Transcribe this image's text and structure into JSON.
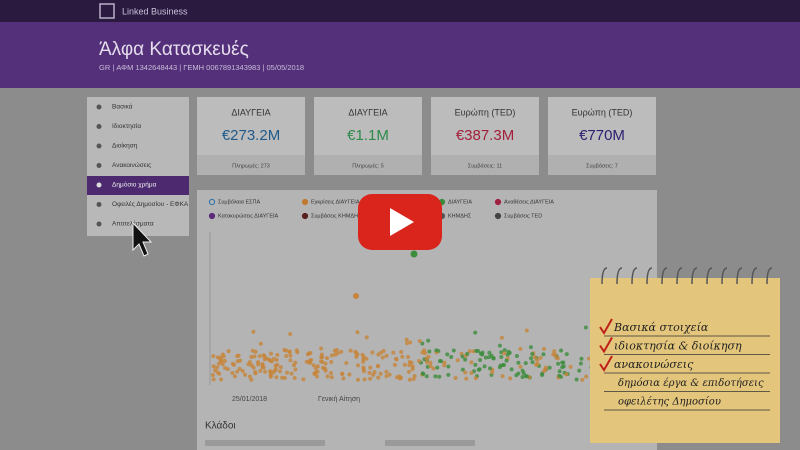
{
  "topbar": {
    "brand": "Linked Business"
  },
  "header": {
    "title": "Άλφα Κατασκευές",
    "subtitle": "GR | ΑΦΜ 1342648443 | ΓΕΜΗ 0067891343983 | 05/05/2018"
  },
  "sidebar": {
    "items": [
      "Βασικά",
      "Ιδιοκτησία",
      "Διοίκηση",
      "Ανακοινώσεις",
      "Δημόσιο χρήμα",
      "Οφειλές Δημοσίου - ΕΦΚΑ",
      "Αποτελέσματα"
    ]
  },
  "cards": [
    {
      "source": "ΔΙΑΥΓΕΙΑ",
      "amount": "€273.2M",
      "note": "Πληρωμές: 273"
    },
    {
      "source": "ΔΙΑΥΓΕΙΑ",
      "amount": "€1.1M",
      "note": "Πληρωμές: 5"
    },
    {
      "source": "Ευρώπη (TED)",
      "amount": "€387.3M",
      "note": "Συμβάσεις: 11"
    },
    {
      "source": "Ευρώπη (TED)",
      "amount": "€770M",
      "note": "Συμβάσεις: 7"
    }
  ],
  "legend": [
    "Συμβόλαια ΕΣΠΑ",
    "Εγκρίσεις ΔΙΑΥΓΕΙΑ",
    "ΔΙΑΥΓΕΙΑ",
    "Αναθέσεις ΔΙΑΥΓΕΙΑ",
    "Κατακυρώσεις ΔΙΑΥΓΕΙΑ",
    "Συμβάσεις ΚΗΜΔΗΣ",
    "ΚΗΜΔΗΣ",
    "Συμβάσεις TED"
  ],
  "table": {
    "date": "25/01/2018",
    "type": "Γενική Αίτηση",
    "section": "Κλάδοι"
  },
  "notes": [
    "Βασικά στοιχεία",
    "ιδιοκτησία & διοίκηση",
    "ανακοινώσεις",
    "δημόσια έργα & επιδοτήσεις",
    "οφειλέτης Δημοσίου"
  ]
}
